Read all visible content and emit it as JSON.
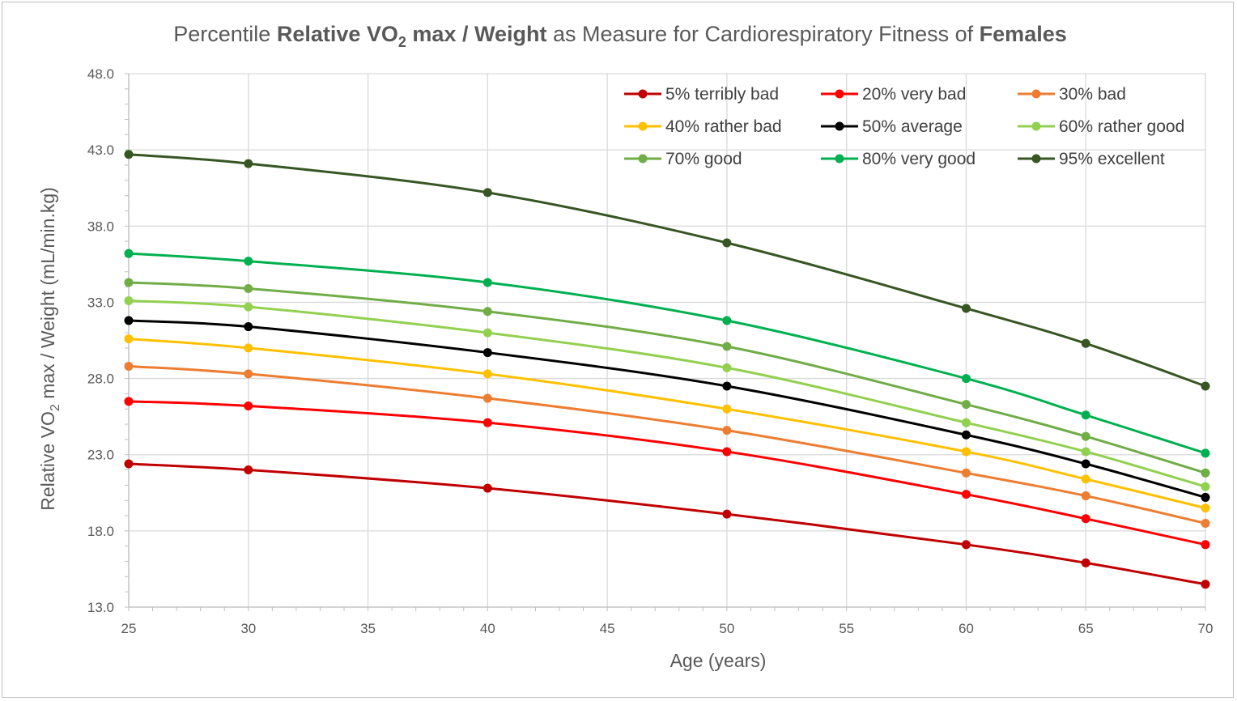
{
  "chart_data": {
    "type": "line",
    "title": {
      "prefix": "Percentile ",
      "bold1": "Relative VO",
      "bold1_sub": "2",
      "bold1_rest": " max / Weight",
      "middle": " as Measure for Cardiorespiratory Fitness of ",
      "bold2": "Females"
    },
    "xlabel": "Age (years)",
    "ylabel": {
      "prefix": "Relative VO",
      "sub": "2",
      "rest": " max / Weight (mL/min.kg)"
    },
    "xlim": [
      25,
      70
    ],
    "ylim": [
      13,
      48
    ],
    "x_ticks": [
      25,
      30,
      35,
      40,
      45,
      50,
      55,
      60,
      65,
      70
    ],
    "y_ticks": [
      "13.0",
      "18.0",
      "23.0",
      "28.0",
      "33.0",
      "38.0",
      "43.0",
      "48.0"
    ],
    "grid": true,
    "legend_position": "top-right",
    "x": [
      25,
      30,
      40,
      50,
      60,
      65,
      70
    ],
    "series": [
      {
        "name": "5% terribly bad",
        "color": "#c00000",
        "values": [
          22.4,
          22.0,
          20.8,
          19.1,
          17.1,
          15.9,
          14.5
        ]
      },
      {
        "name": "20% very bad",
        "color": "#ff0000",
        "values": [
          26.5,
          26.2,
          25.1,
          23.2,
          20.4,
          18.8,
          17.1
        ]
      },
      {
        "name": "30% bad",
        "color": "#ed7d31",
        "values": [
          28.8,
          28.3,
          26.7,
          24.6,
          21.8,
          20.3,
          18.5
        ]
      },
      {
        "name": "40% rather bad",
        "color": "#ffc000",
        "values": [
          30.6,
          30.0,
          28.3,
          26.0,
          23.2,
          21.4,
          19.5
        ]
      },
      {
        "name": "50% average",
        "color": "#000000",
        "values": [
          31.8,
          31.4,
          29.7,
          27.5,
          24.3,
          22.4,
          20.2
        ]
      },
      {
        "name": "60% rather good",
        "color": "#92d050",
        "values": [
          33.1,
          32.7,
          31.0,
          28.7,
          25.1,
          23.2,
          20.9
        ]
      },
      {
        "name": "70% good",
        "color": "#70ad47",
        "values": [
          34.3,
          33.9,
          32.4,
          30.1,
          26.3,
          24.2,
          21.8
        ]
      },
      {
        "name": "80% very good",
        "color": "#00b050",
        "values": [
          36.2,
          35.7,
          34.3,
          31.8,
          28.0,
          25.6,
          23.1
        ]
      },
      {
        "name": "95% excellent",
        "color": "#375623",
        "values": [
          42.7,
          42.1,
          40.2,
          36.9,
          32.6,
          30.3,
          27.5
        ]
      }
    ]
  }
}
